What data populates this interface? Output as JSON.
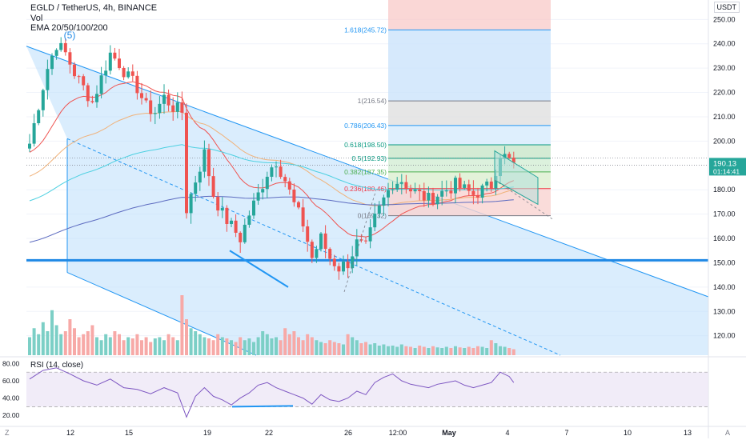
{
  "header": {
    "title": "EGLD / TetherUS, 4h, BINANCE",
    "vol_label": "Vol",
    "ema_label": "EMA 20/50/100/200",
    "wave_label": "(5)"
  },
  "currency_label": "USDT",
  "price_axis": {
    "ticks": [
      "250.00",
      "240.00",
      "230.00",
      "220.00",
      "210.00",
      "200.00",
      "180.00",
      "170.00",
      "160.00",
      "150.00",
      "140.00",
      "130.00",
      "120.00"
    ],
    "last_price": "190.13",
    "countdown": "01:14:41"
  },
  "time_axis": {
    "ticks": [
      "12",
      "15",
      "19",
      "22",
      "26",
      "12:00",
      "May",
      "4",
      "7",
      "10",
      "13"
    ]
  },
  "rsi": {
    "label": "RSI (14, close)",
    "ticks": [
      "80.00",
      "60.00",
      "40.00",
      "20.00"
    ]
  },
  "fib_levels": [
    {
      "ratio": "1.618",
      "label": "1.618(245.72)",
      "color": "#2196f3"
    },
    {
      "ratio": "1",
      "label": "1(216.54)",
      "color": "#787b86"
    },
    {
      "ratio": "0.786",
      "label": "0.786(206.43)",
      "color": "#2196f3"
    },
    {
      "ratio": "0.618",
      "label": "0.618(198.50)",
      "color": "#089981"
    },
    {
      "ratio": "0.5",
      "label": "0.5(192.93)",
      "color": "#089981"
    },
    {
      "ratio": "0.382",
      "label": "0.382(187.35)",
      "color": "#4caf50"
    },
    {
      "ratio": "0.236",
      "label": "0.236(180.46)",
      "color": "#f23645"
    },
    {
      "ratio": "0",
      "label": "0(169.32)",
      "color": "#787b86"
    }
  ],
  "footer": {
    "left_button": "Z",
    "right_button": "A"
  },
  "colors": {
    "up": "#26a69a",
    "down": "#ef5350",
    "vol_up": "#7ccfc6",
    "vol_down": "#f7a9a7",
    "channel": "#2196f3",
    "support": "#1e88e5",
    "rsi_line": "#7e57c2"
  },
  "chart_data": {
    "type": "candlestick",
    "symbol": "EGLD / TetherUS",
    "interval": "4h",
    "x_ticks": [
      "12",
      "15",
      "19",
      "22",
      "26",
      "12:00",
      "May",
      "4",
      "7",
      "10",
      "13"
    ],
    "ylim": [
      112,
      258
    ],
    "support_level": 151,
    "last_price": 190.13,
    "fib_retracement": [
      {
        "ratio": 1.618,
        "price": 245.72
      },
      {
        "ratio": 1,
        "price": 216.54
      },
      {
        "ratio": 0.786,
        "price": 206.43
      },
      {
        "ratio": 0.618,
        "price": 198.5
      },
      {
        "ratio": 0.5,
        "price": 192.93
      },
      {
        "ratio": 0.382,
        "price": 187.35
      },
      {
        "ratio": 0.236,
        "price": 180.46
      },
      {
        "ratio": 0,
        "price": 169.32
      }
    ],
    "price_path": [
      {
        "x": 0,
        "p": 199
      },
      {
        "x": 2,
        "p": 215
      },
      {
        "x": 4,
        "p": 230
      },
      {
        "x": 6,
        "p": 240
      },
      {
        "x": 8,
        "p": 236
      },
      {
        "x": 10,
        "p": 228
      },
      {
        "x": 12,
        "p": 222
      },
      {
        "x": 14,
        "p": 216
      },
      {
        "x": 16,
        "p": 226
      },
      {
        "x": 18,
        "p": 236
      },
      {
        "x": 20,
        "p": 232
      },
      {
        "x": 22,
        "p": 226
      },
      {
        "x": 24,
        "p": 222
      },
      {
        "x": 26,
        "p": 214
      },
      {
        "x": 28,
        "p": 212
      },
      {
        "x": 30,
        "p": 218
      },
      {
        "x": 32,
        "p": 214
      },
      {
        "x": 34,
        "p": 212
      },
      {
        "x": 35,
        "p": 172
      },
      {
        "x": 37,
        "p": 184
      },
      {
        "x": 39,
        "p": 195
      },
      {
        "x": 41,
        "p": 178
      },
      {
        "x": 43,
        "p": 170
      },
      {
        "x": 45,
        "p": 165
      },
      {
        "x": 47,
        "p": 160
      },
      {
        "x": 49,
        "p": 170
      },
      {
        "x": 51,
        "p": 178
      },
      {
        "x": 53,
        "p": 187
      },
      {
        "x": 55,
        "p": 192
      },
      {
        "x": 57,
        "p": 184
      },
      {
        "x": 59,
        "p": 174
      },
      {
        "x": 61,
        "p": 166
      },
      {
        "x": 63,
        "p": 152
      },
      {
        "x": 65,
        "p": 160
      },
      {
        "x": 67,
        "p": 152
      },
      {
        "x": 69,
        "p": 148
      },
      {
        "x": 71,
        "p": 150
      },
      {
        "x": 73,
        "p": 158
      },
      {
        "x": 75,
        "p": 156
      },
      {
        "x": 77,
        "p": 168
      },
      {
        "x": 79,
        "p": 176
      },
      {
        "x": 81,
        "p": 183
      },
      {
        "x": 83,
        "p": 184
      },
      {
        "x": 85,
        "p": 180
      },
      {
        "x": 87,
        "p": 178
      },
      {
        "x": 89,
        "p": 176
      },
      {
        "x": 91,
        "p": 178
      },
      {
        "x": 93,
        "p": 180
      },
      {
        "x": 95,
        "p": 182
      },
      {
        "x": 97,
        "p": 180
      },
      {
        "x": 99,
        "p": 178
      },
      {
        "x": 101,
        "p": 180
      },
      {
        "x": 103,
        "p": 182
      },
      {
        "x": 105,
        "p": 195
      },
      {
        "x": 107,
        "p": 192
      },
      {
        "x": 108,
        "p": 190.13
      }
    ],
    "volume_relative": [
      0.3,
      0.45,
      0.35,
      0.55,
      0.4,
      0.75,
      0.5,
      0.35,
      0.4,
      0.6,
      0.45,
      0.3,
      0.35,
      0.4,
      0.5,
      0.3,
      0.25,
      0.35,
      0.3,
      0.4,
      0.35,
      0.25,
      0.3,
      0.28,
      0.35,
      0.25,
      0.3,
      0.22,
      0.28,
      0.3,
      0.25,
      0.35,
      0.3,
      0.25,
      1.0,
      0.6,
      0.45,
      0.4,
      0.35,
      0.3,
      0.28,
      0.25,
      0.35,
      0.3,
      0.28,
      0.25,
      0.22,
      0.3,
      0.25,
      0.28,
      0.22,
      0.3,
      0.4,
      0.35,
      0.28,
      0.3,
      0.25,
      0.45,
      0.35,
      0.4,
      0.3,
      0.25,
      0.35,
      0.3,
      0.25,
      0.22,
      0.2,
      0.25,
      0.22,
      0.2,
      0.18,
      0.35,
      0.3,
      0.25,
      0.2,
      0.22,
      0.18,
      0.2,
      0.16,
      0.18,
      0.15,
      0.16,
      0.14,
      0.18,
      0.15,
      0.14,
      0.12,
      0.16,
      0.14,
      0.12,
      0.15,
      0.13,
      0.12,
      0.14,
      0.12,
      0.15,
      0.13,
      0.12,
      0.14,
      0.12,
      0.15,
      0.14,
      0.12,
      0.25,
      0.2,
      0.15,
      0.14,
      0.12,
      0.1
    ],
    "rsi_path": [
      {
        "x": 0,
        "v": 62
      },
      {
        "x": 3,
        "v": 72
      },
      {
        "x": 6,
        "v": 75
      },
      {
        "x": 9,
        "v": 68
      },
      {
        "x": 12,
        "v": 60
      },
      {
        "x": 15,
        "v": 55
      },
      {
        "x": 18,
        "v": 62
      },
      {
        "x": 21,
        "v": 52
      },
      {
        "x": 24,
        "v": 50
      },
      {
        "x": 27,
        "v": 45
      },
      {
        "x": 30,
        "v": 52
      },
      {
        "x": 33,
        "v": 46
      },
      {
        "x": 35,
        "v": 18
      },
      {
        "x": 37,
        "v": 42
      },
      {
        "x": 39,
        "v": 52
      },
      {
        "x": 41,
        "v": 42
      },
      {
        "x": 43,
        "v": 38
      },
      {
        "x": 45,
        "v": 32
      },
      {
        "x": 47,
        "v": 40
      },
      {
        "x": 49,
        "v": 46
      },
      {
        "x": 51,
        "v": 55
      },
      {
        "x": 53,
        "v": 58
      },
      {
        "x": 55,
        "v": 52
      },
      {
        "x": 57,
        "v": 48
      },
      {
        "x": 59,
        "v": 44
      },
      {
        "x": 61,
        "v": 40
      },
      {
        "x": 63,
        "v": 33
      },
      {
        "x": 65,
        "v": 44
      },
      {
        "x": 67,
        "v": 38
      },
      {
        "x": 69,
        "v": 36
      },
      {
        "x": 71,
        "v": 40
      },
      {
        "x": 73,
        "v": 48
      },
      {
        "x": 75,
        "v": 44
      },
      {
        "x": 77,
        "v": 58
      },
      {
        "x": 79,
        "v": 64
      },
      {
        "x": 81,
        "v": 68
      },
      {
        "x": 83,
        "v": 60
      },
      {
        "x": 85,
        "v": 56
      },
      {
        "x": 87,
        "v": 54
      },
      {
        "x": 89,
        "v": 52
      },
      {
        "x": 91,
        "v": 56
      },
      {
        "x": 93,
        "v": 58
      },
      {
        "x": 95,
        "v": 60
      },
      {
        "x": 97,
        "v": 55
      },
      {
        "x": 99,
        "v": 52
      },
      {
        "x": 101,
        "v": 55
      },
      {
        "x": 103,
        "v": 58
      },
      {
        "x": 105,
        "v": 70
      },
      {
        "x": 107,
        "v": 65
      },
      {
        "x": 108,
        "v": 58
      }
    ],
    "rsi_bands": [
      70,
      30
    ],
    "rsi_ylim": [
      10,
      85
    ]
  }
}
